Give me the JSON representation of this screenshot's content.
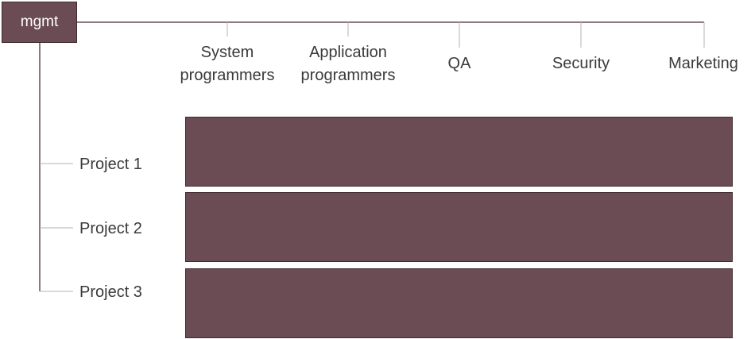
{
  "root": {
    "label": "mgmt"
  },
  "departments": [
    {
      "label": "System\nprogrammers"
    },
    {
      "label": "Application\nprogrammers"
    },
    {
      "label": "QA"
    },
    {
      "label": "Security"
    },
    {
      "label": "Marketing"
    }
  ],
  "projects": [
    {
      "label": "Project 1"
    },
    {
      "label": "Project 2"
    },
    {
      "label": "Project 3"
    }
  ],
  "colors": {
    "box_fill": "#6b4c55",
    "box_border": "#3e2a30",
    "connector": "#b8b2b4",
    "root_connector": "#6b4c55"
  }
}
